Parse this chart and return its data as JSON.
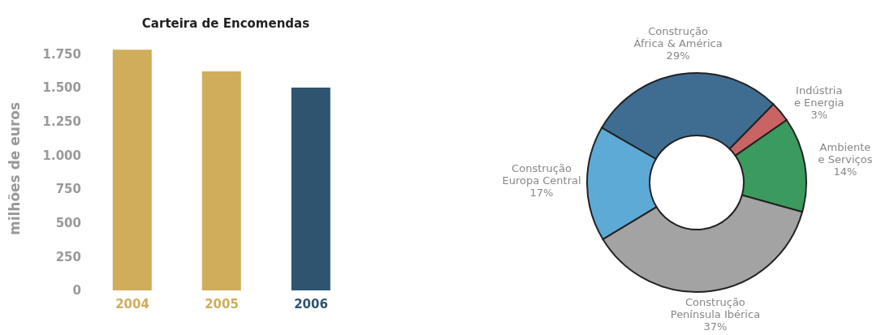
{
  "chart_data": [
    {
      "type": "bar",
      "title": "Carteira de Encomendas",
      "ylabel": "milhões de euros",
      "categories": [
        "2004",
        "2005",
        "2006"
      ],
      "values": [
        1780,
        1620,
        1500
      ],
      "colors": [
        "#cfad5a",
        "#cfad5a",
        "#2f5470"
      ],
      "ylim": [
        0,
        1800
      ],
      "yticks": [
        0,
        250,
        500,
        750,
        {
          "value": 1000,
          "label": "1.000"
        },
        {
          "value": 1250,
          "label": "1.250"
        },
        {
          "value": 1500,
          "label": "1.500"
        },
        {
          "value": 1750,
          "label": "1.750"
        }
      ],
      "grid": false
    },
    {
      "type": "donut",
      "categories": [
        "Construção\nÁfrica & América",
        "Indústria\ne Energia",
        "Ambiente\ne Serviços",
        "Construção\nPenínsula Ibérica",
        "Construção\nEuropa Central"
      ],
      "values": [
        29,
        3,
        14,
        37,
        17
      ],
      "colors": [
        "#3f6d92",
        "#c96464",
        "#3b9a5e",
        "#a3a3a3",
        "#5eaad6"
      ],
      "value_labels": [
        "29%",
        "3%",
        "14%",
        "37%",
        "17%"
      ]
    }
  ]
}
